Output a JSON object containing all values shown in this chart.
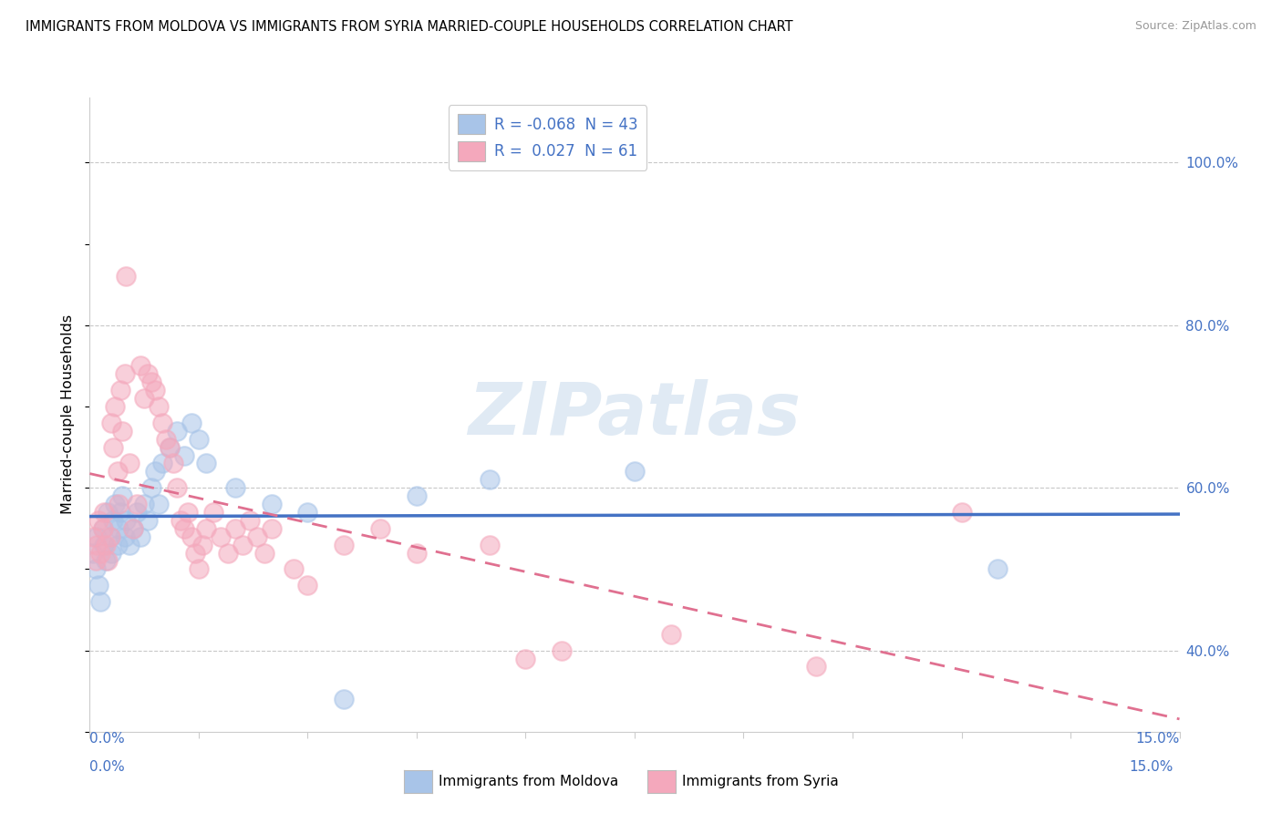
{
  "title": "IMMIGRANTS FROM MOLDOVA VS IMMIGRANTS FROM SYRIA MARRIED-COUPLE HOUSEHOLDS CORRELATION CHART",
  "source": "Source: ZipAtlas.com",
  "ylabel": "Married-couple Households",
  "legend_moldova": "R = -0.068  N = 43",
  "legend_syria": "R =  0.027  N = 61",
  "moldova_color": "#a8c4e8",
  "syria_color": "#f4a8bc",
  "moldova_line_color": "#4472c4",
  "syria_line_color": "#e07090",
  "watermark": "ZIPatlas",
  "xlim": [
    0.0,
    15.0
  ],
  "ylim": [
    30.0,
    108.0
  ],
  "moldova_scatter": [
    [
      0.05,
      52
    ],
    [
      0.08,
      50
    ],
    [
      0.1,
      54
    ],
    [
      0.12,
      48
    ],
    [
      0.15,
      46
    ],
    [
      0.18,
      55
    ],
    [
      0.2,
      53
    ],
    [
      0.22,
      51
    ],
    [
      0.25,
      57
    ],
    [
      0.28,
      54
    ],
    [
      0.3,
      52
    ],
    [
      0.32,
      56
    ],
    [
      0.35,
      58
    ],
    [
      0.38,
      53
    ],
    [
      0.4,
      55
    ],
    [
      0.42,
      57
    ],
    [
      0.45,
      59
    ],
    [
      0.48,
      54
    ],
    [
      0.5,
      56
    ],
    [
      0.55,
      53
    ],
    [
      0.6,
      55
    ],
    [
      0.65,
      57
    ],
    [
      0.7,
      54
    ],
    [
      0.75,
      58
    ],
    [
      0.8,
      56
    ],
    [
      0.85,
      60
    ],
    [
      0.9,
      62
    ],
    [
      0.95,
      58
    ],
    [
      1.0,
      63
    ],
    [
      1.1,
      65
    ],
    [
      1.2,
      67
    ],
    [
      1.3,
      64
    ],
    [
      1.4,
      68
    ],
    [
      1.5,
      66
    ],
    [
      1.6,
      63
    ],
    [
      2.0,
      60
    ],
    [
      2.5,
      58
    ],
    [
      3.0,
      57
    ],
    [
      3.5,
      34
    ],
    [
      4.5,
      59
    ],
    [
      7.5,
      62
    ],
    [
      12.5,
      50
    ],
    [
      5.5,
      61
    ]
  ],
  "syria_scatter": [
    [
      0.05,
      54
    ],
    [
      0.08,
      51
    ],
    [
      0.1,
      53
    ],
    [
      0.12,
      56
    ],
    [
      0.15,
      52
    ],
    [
      0.18,
      55
    ],
    [
      0.2,
      57
    ],
    [
      0.22,
      53
    ],
    [
      0.25,
      51
    ],
    [
      0.28,
      54
    ],
    [
      0.3,
      68
    ],
    [
      0.32,
      65
    ],
    [
      0.35,
      70
    ],
    [
      0.38,
      62
    ],
    [
      0.4,
      58
    ],
    [
      0.42,
      72
    ],
    [
      0.45,
      67
    ],
    [
      0.48,
      74
    ],
    [
      0.5,
      86
    ],
    [
      0.55,
      63
    ],
    [
      0.6,
      55
    ],
    [
      0.65,
      58
    ],
    [
      0.7,
      75
    ],
    [
      0.75,
      71
    ],
    [
      0.8,
      74
    ],
    [
      0.85,
      73
    ],
    [
      0.9,
      72
    ],
    [
      0.95,
      70
    ],
    [
      1.0,
      68
    ],
    [
      1.05,
      66
    ],
    [
      1.1,
      65
    ],
    [
      1.15,
      63
    ],
    [
      1.2,
      60
    ],
    [
      1.25,
      56
    ],
    [
      1.3,
      55
    ],
    [
      1.35,
      57
    ],
    [
      1.4,
      54
    ],
    [
      1.45,
      52
    ],
    [
      1.5,
      50
    ],
    [
      1.55,
      53
    ],
    [
      1.6,
      55
    ],
    [
      1.7,
      57
    ],
    [
      1.8,
      54
    ],
    [
      1.9,
      52
    ],
    [
      2.0,
      55
    ],
    [
      2.1,
      53
    ],
    [
      2.2,
      56
    ],
    [
      2.3,
      54
    ],
    [
      2.4,
      52
    ],
    [
      2.5,
      55
    ],
    [
      2.8,
      50
    ],
    [
      3.0,
      48
    ],
    [
      3.5,
      53
    ],
    [
      4.0,
      55
    ],
    [
      4.5,
      52
    ],
    [
      5.5,
      53
    ],
    [
      6.0,
      39
    ],
    [
      6.5,
      40
    ],
    [
      8.0,
      42
    ],
    [
      10.0,
      38
    ],
    [
      12.0,
      57
    ]
  ]
}
